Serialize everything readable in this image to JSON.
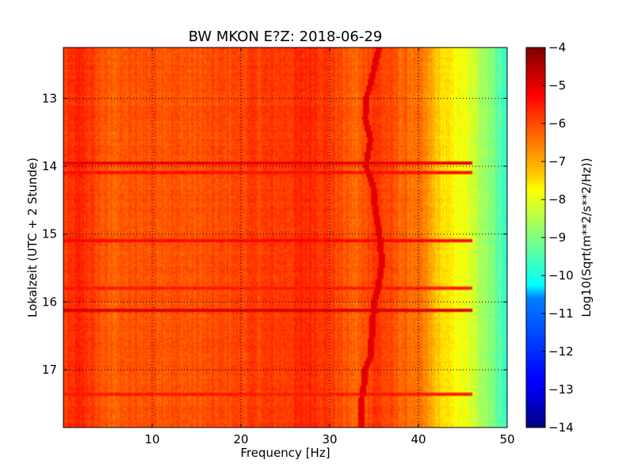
{
  "chart_data": {
    "type": "heatmap",
    "title": "BW MKON E?Z: 2018-06-29",
    "xlabel": "Frequency [Hz]",
    "ylabel": "Lokalzeit (UTC + 2 Stunde)",
    "xlim": [
      0,
      50
    ],
    "ylim": [
      17.85,
      12.25
    ],
    "x_ticks": [
      10,
      20,
      30,
      40,
      50
    ],
    "x_tick_labels": [
      "10",
      "20",
      "30",
      "40",
      "50"
    ],
    "y_ticks": [
      13,
      14,
      15,
      16,
      17
    ],
    "y_tick_labels": [
      "13",
      "14",
      "15",
      "16",
      "17"
    ],
    "grid": true,
    "colormap": "jet",
    "colorbar": {
      "label": "Log10(Sqrt(m**2/s**2/Hz))",
      "min": -14,
      "max": -4,
      "ticks": [
        -4,
        -5,
        -6,
        -7,
        -8,
        -9,
        -10,
        -11,
        -12,
        -13,
        -14
      ],
      "tick_labels": [
        "−4",
        "−5",
        "−6",
        "−7",
        "−8",
        "−9",
        "−10",
        "−11",
        "−12",
        "−13",
        "−14"
      ]
    },
    "spectrum_profile": {
      "frequency_hz": [
        0,
        2,
        3,
        5,
        10,
        15,
        20,
        25,
        28,
        30,
        33,
        35,
        38,
        40,
        41,
        42,
        43,
        44,
        45,
        46,
        47,
        48,
        49,
        50
      ],
      "level_log10": [
        -5.9,
        -5.6,
        -5.8,
        -6.2,
        -6.0,
        -6.1,
        -5.9,
        -5.8,
        -5.6,
        -5.8,
        -6.3,
        -5.7,
        -6.2,
        -6.4,
        -6.7,
        -7.2,
        -7.5,
        -7.7,
        -7.9,
        -8.2,
        -8.5,
        -8.8,
        -9.3,
        -9.8
      ]
    },
    "wandering_line": {
      "time_h": [
        12.25,
        12.5,
        12.8,
        13.0,
        13.3,
        13.6,
        14.0,
        14.3,
        14.6,
        15.0,
        15.4,
        15.8,
        16.0,
        16.4,
        16.8,
        17.0,
        17.3,
        17.5
      ],
      "frequency_hz": [
        35.6,
        35.1,
        34.6,
        34.1,
        34.0,
        34.6,
        34.1,
        34.9,
        35.1,
        35.6,
        35.9,
        35.5,
        35.0,
        34.8,
        34.6,
        34.0,
        33.8,
        33.5
      ],
      "level_log10": -5.0
    },
    "horizontal_bands": [
      {
        "time_h": 13.95,
        "level_log10": -5.1
      },
      {
        "time_h": 14.1,
        "level_log10": -5.4
      },
      {
        "time_h": 15.1,
        "level_log10": -5.3
      },
      {
        "time_h": 15.8,
        "level_log10": -5.5
      },
      {
        "time_h": 16.13,
        "level_log10": -4.9
      },
      {
        "time_h": 17.35,
        "level_log10": -5.5
      }
    ]
  }
}
